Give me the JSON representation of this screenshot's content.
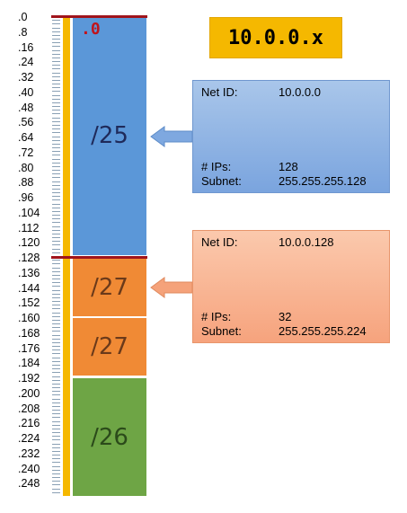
{
  "title": "10.0.0.x",
  "start_label": ".0",
  "ticks": [
    ".0",
    ".8",
    ".16",
    ".24",
    ".32",
    ".40",
    ".48",
    ".56",
    ".64",
    ".72",
    ".80",
    ".88",
    ".96",
    ".104",
    ".112",
    ".120",
    ".128",
    ".136",
    ".144",
    ".152",
    ".160",
    ".168",
    ".176",
    ".184",
    ".192",
    ".200",
    ".208",
    ".216",
    ".224",
    ".232",
    ".240",
    ".248"
  ],
  "blocks": [
    {
      "label": "/25",
      "color": "#5b97d8"
    },
    {
      "label": "/27",
      "color": "#f08a35"
    },
    {
      "label": "/27",
      "color": "#f08a35"
    },
    {
      "label": "/26",
      "color": "#6ea545"
    }
  ],
  "info_boxes": [
    {
      "net_id_key": "Net ID:",
      "net_id": "10.0.0.0",
      "ips_key": "# IPs:",
      "ips": "128",
      "subnet_key": "Subnet:",
      "subnet": "255.255.255.128"
    },
    {
      "net_id_key": "Net ID:",
      "net_id": "10.0.0.128",
      "ips_key": "# IPs:",
      "ips": "32",
      "subnet_key": "Subnet:",
      "subnet": "255.255.255.224"
    }
  ],
  "colors": {
    "gold": "#f5b800",
    "red": "#a0141c",
    "blue_arrow": "#7ea8e0",
    "orange_arrow": "#f5a27a"
  }
}
